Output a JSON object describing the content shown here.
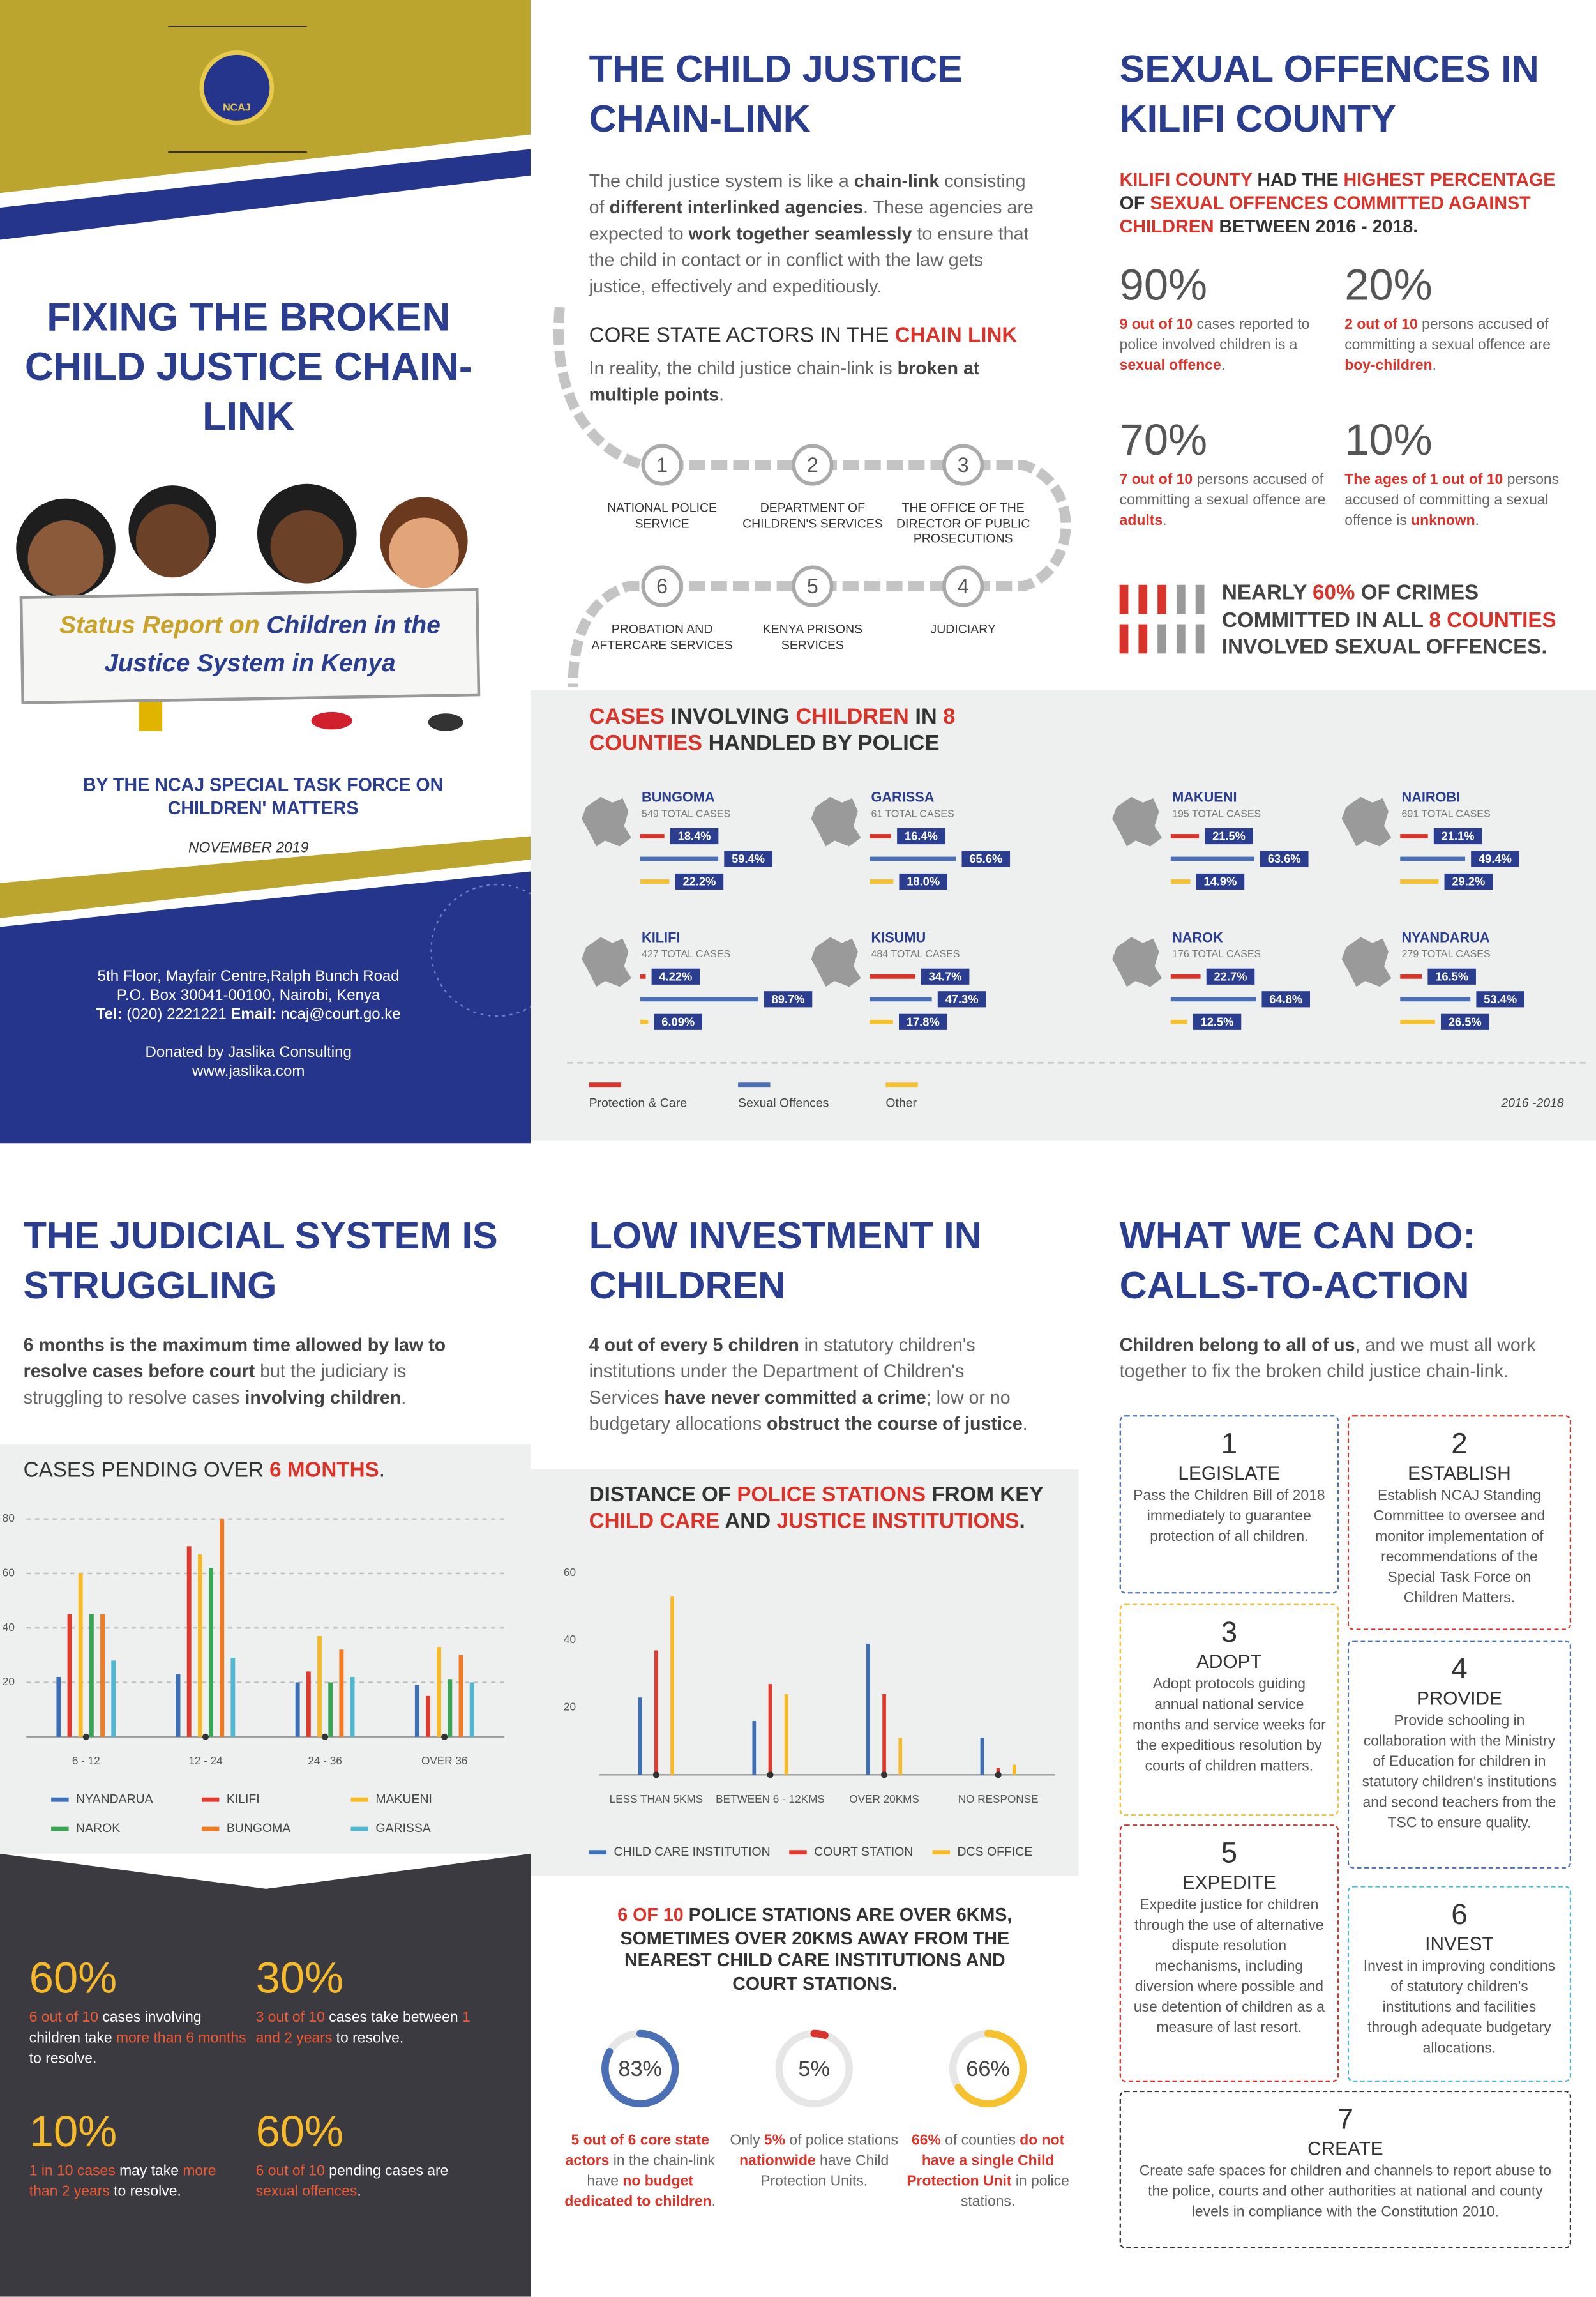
{
  "cover": {
    "logo": "NCAJ",
    "title": "FIXING THE BROKEN CHILD JUSTICE CHAIN-LINK",
    "banner": [
      {
        "y": "Status Report on "
      },
      "Children in the Justice System in Kenya"
    ],
    "byline": "BY THE NCAJ SPECIAL TASK FORCE ON CHILDREN' MATTERS",
    "date": "NOVEMBER 2019",
    "address": [
      "5th Floor, Mayfair Centre,Ralph Bunch Road",
      "P.O. Box 30041-00100, Nairobi, Kenya",
      [
        {
          "b": "Tel:"
        },
        " (020) 2221221 ",
        {
          "b": "Email:"
        },
        " ncaj@court.go.ke"
      ]
    ],
    "donor": [
      "Donated by Jaslika Consulting",
      "www.jaslika.com"
    ]
  },
  "chain": {
    "title": "THE CHILD JUSTICE CHAIN-LINK",
    "intro": [
      "The child justice system is like a ",
      {
        "b": "chain-link"
      },
      " consisting of ",
      {
        "b": "different interlinked agencies"
      },
      ". These agencies are expected to ",
      {
        "b": "work together seamlessly"
      },
      " to ensure that the child in contact or in conflict with the law gets justice, effectively and expeditiously."
    ],
    "subtitle": [
      "CORE STATE ACTORS IN THE ",
      {
        "r": "CHAIN LINK"
      }
    ],
    "note": [
      "In reality, the child justice chain-link is ",
      {
        "b": "broken at multiple points"
      },
      "."
    ],
    "actors": [
      {
        "number": 1,
        "name": "NATIONAL POLICE SERVICE"
      },
      {
        "number": 2,
        "name": "DEPARTMENT OF CHILDREN'S SERVICES"
      },
      {
        "number": 3,
        "name": "THE OFFICE OF THE DIRECTOR OF PUBLIC PROSECUTIONS"
      },
      {
        "number": 4,
        "name": "JUDICIARY"
      },
      {
        "number": 5,
        "name": "KENYA PRISONS SERVICES"
      },
      {
        "number": 6,
        "name": "PROBATION AND AFTERCARE SERVICES"
      }
    ]
  },
  "sexual": {
    "title": "SEXUAL OFFENCES IN KILIFI COUNTY",
    "intro": [
      {
        "r": "KILIFI COUNTY"
      },
      " HAD THE ",
      {
        "r": "HIGHEST PERCENTAGE"
      },
      " OF ",
      {
        "r": "SEXUAL OFFENCES COMMITTED AGAINST CHILDREN"
      },
      " BETWEEN 2016 - 2018."
    ],
    "stats": [
      {
        "value": "90%",
        "text": [
          {
            "r": "9 out of 10"
          },
          " cases reported to police involved children is a ",
          {
            "r": "sexual offence"
          },
          "."
        ]
      },
      {
        "value": "20%",
        "text": [
          {
            "r": "2 out of 10"
          },
          " persons accused of committing a sexual offence are ",
          {
            "r": "boy-children"
          },
          "."
        ]
      },
      {
        "value": "70%",
        "text": [
          {
            "r": "7 out of 10"
          },
          " persons accused of committing a sexual offence are ",
          {
            "r": "adults"
          },
          "."
        ]
      },
      {
        "value": "10%",
        "text": [
          {
            "r": "The ages of 1 out of 10"
          },
          " persons accused of committing a sexual offence is ",
          {
            "r": "unknown"
          },
          "."
        ]
      }
    ],
    "highlight": [
      "NEARLY ",
      {
        "r": "60%"
      },
      " OF CRIMES COMMITTED IN ALL ",
      {
        "r": "8 COUNTIES"
      },
      " INVOLVED SEXUAL OFFENCES."
    ]
  },
  "police": {
    "title": [
      {
        "r": "CASES"
      },
      " INVOLVING ",
      {
        "r": "CHILDREN"
      },
      " IN ",
      {
        "r": "8 COUNTIES"
      },
      " HANDLED BY POLICE"
    ],
    "series": [
      {
        "name": "Protection & Care",
        "color": "#d9342b"
      },
      {
        "name": "Sexual Offences",
        "color": "#4a6fb5"
      },
      {
        "name": "Other",
        "color": "#f5c12e"
      }
    ],
    "counties": [
      {
        "name": "BUNGOMA",
        "total": "549 TOTAL CASES",
        "values": [
          18.4,
          59.4,
          22.2
        ],
        "value_labels": [
          "18.4%",
          "59.4%",
          "22.2%"
        ]
      },
      {
        "name": "GARISSA",
        "total": "61 TOTAL CASES",
        "values": [
          16.4,
          65.6,
          18.0
        ],
        "value_labels": [
          "16.4%",
          "65.6%",
          "18.0%"
        ]
      },
      {
        "name": "MAKUENI",
        "total": "195 TOTAL CASES",
        "values": [
          21.5,
          63.6,
          14.9
        ],
        "value_labels": [
          "21.5%",
          "63.6%",
          "14.9%"
        ]
      },
      {
        "name": "NAIROBI",
        "total": "691 TOTAL CASES",
        "values": [
          21.1,
          49.4,
          29.2
        ],
        "value_labels": [
          "21.1%",
          "49.4%",
          "29.2%"
        ]
      },
      {
        "name": "KILIFI",
        "total": "427 TOTAL CASES",
        "values": [
          4.22,
          89.7,
          6.09
        ],
        "value_labels": [
          "4.22%",
          "89.7%",
          "6.09%"
        ]
      },
      {
        "name": "KISUMU",
        "total": "484 TOTAL CASES",
        "values": [
          34.7,
          47.3,
          17.8
        ],
        "value_labels": [
          "34.7%",
          "47.3%",
          "17.8%"
        ]
      },
      {
        "name": "NAROK",
        "total": "176 TOTAL CASES",
        "values": [
          22.7,
          64.8,
          12.5
        ],
        "value_labels": [
          "22.7%",
          "64.8%",
          "12.5%"
        ]
      },
      {
        "name": "NYANDARUA",
        "total": "279 TOTAL CASES",
        "values": [
          16.5,
          53.4,
          26.5
        ],
        "value_labels": [
          "16.5%",
          "53.4%",
          "26.5%"
        ]
      }
    ],
    "period": "2016 -2018"
  },
  "judicial": {
    "title": "THE JUDICIAL SYSTEM IS STRUGGLING",
    "intro": [
      {
        "b": "6 months is the maximum time allowed by law to resolve cases before court"
      },
      " but the judiciary is struggling to resolve cases ",
      {
        "b": "involving children"
      },
      "."
    ],
    "chart": {
      "type": "bar",
      "title": [
        "CASES PENDING OVER ",
        {
          "r": "6 MONTHS"
        },
        "."
      ],
      "categories": [
        "6 - 12",
        "12 - 24",
        "24 - 36",
        "OVER 36"
      ],
      "series": [
        {
          "name": "NYANDARUA",
          "color": "#3d6fb6",
          "values": [
            22,
            23,
            20,
            19
          ]
        },
        {
          "name": "KILIFI",
          "color": "#e03a2f",
          "values": [
            45,
            70,
            24,
            15
          ]
        },
        {
          "name": "MAKUENI",
          "color": "#f6b928",
          "values": [
            60,
            67,
            37,
            33
          ]
        },
        {
          "name": "NAROK",
          "color": "#3aa655",
          "values": [
            45,
            62,
            20,
            21
          ]
        },
        {
          "name": "BUNGOMA",
          "color": "#f07b22",
          "values": [
            45,
            80,
            32,
            30
          ]
        },
        {
          "name": "GARISSA",
          "color": "#4fb8d0",
          "values": [
            28,
            29,
            22,
            20
          ]
        }
      ],
      "ylim": [
        0,
        80
      ],
      "yticks": [
        20,
        40,
        60,
        80
      ],
      "grid": true
    },
    "stats": [
      {
        "value": "60%",
        "text": [
          {
            "r": "6 out of 10"
          },
          " cases involving children take ",
          {
            "r": "more than 6 months"
          },
          " to resolve."
        ]
      },
      {
        "value": "30%",
        "text": [
          {
            "r": "3 out of 10"
          },
          " cases take between ",
          {
            "r": "1 and 2 years"
          },
          " to resolve."
        ]
      },
      {
        "value": "10%",
        "text": [
          {
            "r": "1 in 10 cases"
          },
          " may take ",
          {
            "r": "more than 2 years"
          },
          " to resolve."
        ]
      },
      {
        "value": "60%",
        "text": [
          {
            "r": "6 out of 10"
          },
          " pending cases are ",
          {
            "r": "sexual offences"
          },
          "."
        ]
      }
    ]
  },
  "investment": {
    "title": "LOW INVESTMENT IN CHILDREN",
    "intro": [
      {
        "b": "4 out of every 5 children"
      },
      " in statutory children's institutions under the Department of Children's Services ",
      {
        "b": "have never committed a crime"
      },
      "; low or no budgetary allocations ",
      {
        "b": "obstruct the course of justice"
      },
      "."
    ],
    "chart": {
      "type": "bar",
      "title": [
        "DISTANCE OF ",
        {
          "r": "POLICE STATIONS"
        },
        " FROM KEY ",
        {
          "r": "CHILD CARE"
        },
        " AND ",
        {
          "r": "JUSTICE INSTITUTIONS"
        },
        "."
      ],
      "categories": [
        "LESS THAN 5KMS",
        "BETWEEN 6 - 12KMS",
        "OVER 20KMS",
        "NO RESPONSE"
      ],
      "series": [
        {
          "name": "CHILD CARE INSTITUTION",
          "color": "#3d6fb6",
          "values": [
            23,
            16,
            39,
            11
          ]
        },
        {
          "name": "COURT STATION",
          "color": "#e03a2f",
          "values": [
            37,
            27,
            24,
            2
          ]
        },
        {
          "name": "DCS OFFICE",
          "color": "#f6b928",
          "values": [
            53,
            24,
            11,
            3
          ]
        }
      ],
      "ylim": [
        0,
        60
      ],
      "yticks": [
        20,
        40,
        60
      ],
      "grid": false
    },
    "statement": [
      {
        "r": "6 OF 10"
      },
      " POLICE STATIONS ARE OVER 6KMS, SOMETIMES OVER 20KMS AWAY FROM THE NEAREST CHILD CARE INSTITUTIONS AND COURT STATIONS."
    ],
    "donuts": [
      {
        "value": 83,
        "label": "83%",
        "color": "#4a6fb5",
        "text": [
          {
            "r": "5 out of 6 core state actors"
          },
          " in the chain-link have ",
          {
            "r": "no budget dedicated to children"
          },
          "."
        ]
      },
      {
        "value": 5,
        "label": "5%",
        "color": "#d9342b",
        "text": [
          "Only ",
          {
            "r": "5%"
          },
          " of police stations ",
          {
            "r": "nationwide"
          },
          " have Child Protection Units."
        ]
      },
      {
        "value": 66,
        "label": "66%",
        "color": "#f5c12e",
        "text": [
          {
            "r": "66%"
          },
          " of counties ",
          {
            "r": "do not have a single Child Protection Unit"
          },
          " in police stations."
        ]
      }
    ]
  },
  "actions": {
    "title": "WHAT WE CAN DO: CALLS-TO-ACTION",
    "intro": [
      {
        "b": "Children belong to all of us"
      },
      ", and we must all work together to fix the broken child justice chain-link."
    ],
    "items": [
      {
        "number": 1,
        "title": "LEGISLATE",
        "text": "Pass the Children Bill of 2018 immediately to guarantee protection of all children."
      },
      {
        "number": 2,
        "title": "ESTABLISH",
        "text": "Establish NCAJ Standing Committee to oversee and monitor implementation of recommendations of the Special Task Force on Children Matters."
      },
      {
        "number": 3,
        "title": "ADOPT",
        "text": "Adopt protocols guiding annual national service months and service weeks for the expeditious resolution by courts of children matters."
      },
      {
        "number": 4,
        "title": "PROVIDE",
        "text": "Provide schooling in collaboration with the Ministry of Education for children in statutory children's institutions and second teachers from the TSC to ensure quality."
      },
      {
        "number": 5,
        "title": "EXPEDITE",
        "text": "Expedite justice for children through the use of alternative dispute resolution mechanisms, including diversion where possible and use detention of children as a measure of last resort."
      },
      {
        "number": 6,
        "title": "INVEST",
        "text": "Invest in improving conditions of statutory children's institutions and facilities through adequate budgetary allocations."
      },
      {
        "number": 7,
        "title": "CREATE",
        "text": "Create safe spaces for children and channels to report abuse to the police, courts and other authorities at national and county levels in compliance with the Constitution 2010."
      }
    ]
  }
}
